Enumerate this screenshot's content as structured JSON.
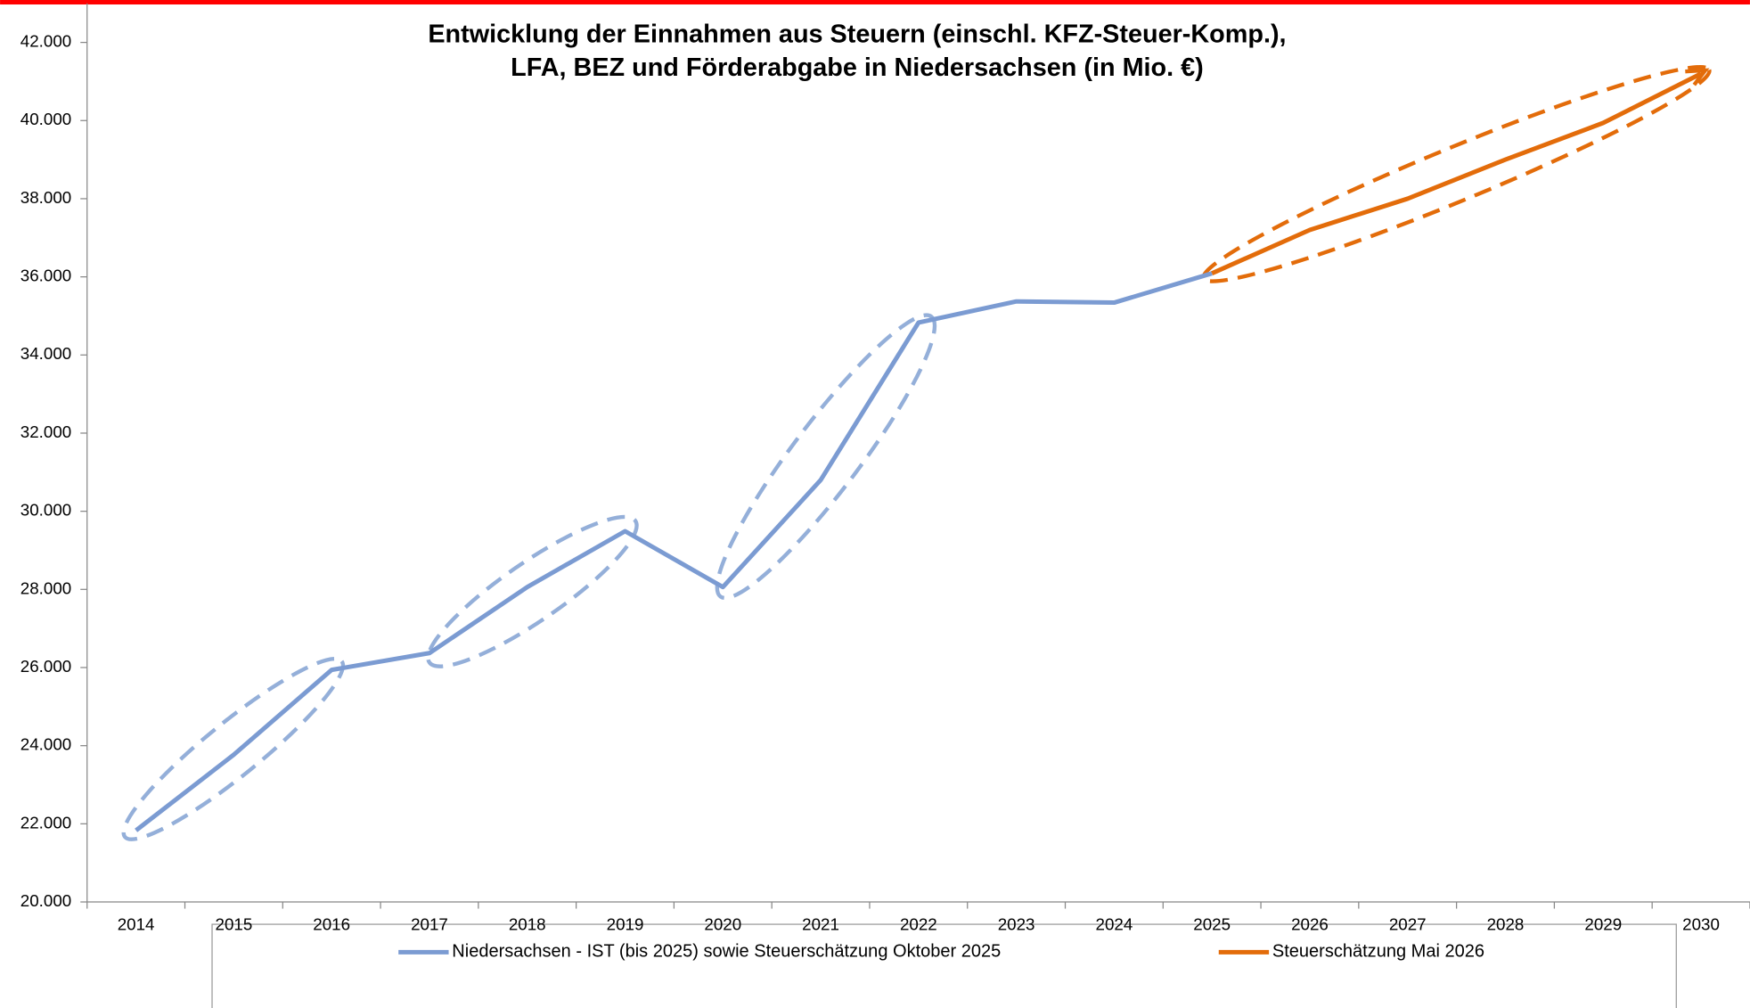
{
  "chart_data": {
    "type": "line",
    "title": [
      "Entwicklung der Einnahmen aus Steuern (einschl. KFZ-Steuer-Komp.),",
      "LFA, BEZ und Förderabgabe in Niedersachsen (in Mio. €)"
    ],
    "categories": [
      "2014",
      "2015",
      "2016",
      "2017",
      "2018",
      "2019",
      "2020",
      "2021",
      "2022",
      "2023",
      "2024",
      "2025",
      "2026",
      "2027",
      "2028",
      "2029",
      "2030"
    ],
    "series": [
      {
        "name": "Niedersachsen - IST (bis 2025) sowie Steuerschätzung Oktober 2025",
        "color": "#7b9bd2",
        "values": [
          21830,
          23770,
          25940,
          26370,
          28060,
          29490,
          28060,
          30800,
          34830,
          35370,
          35340,
          36090,
          null,
          null,
          null,
          null,
          null
        ]
      },
      {
        "name": "Steuerschätzung Mai 2026",
        "color": "#e36c0a",
        "values": [
          null,
          null,
          null,
          null,
          null,
          null,
          null,
          null,
          null,
          null,
          null,
          36090,
          37200,
          38000,
          39000,
          39940,
          41200
        ]
      }
    ],
    "ylim": [
      20000,
      43000
    ],
    "yticks": [
      {
        "value": 20000,
        "label": "20.000"
      },
      {
        "value": 22000,
        "label": "22.000"
      },
      {
        "value": 24000,
        "label": "24.000"
      },
      {
        "value": 26000,
        "label": "26.000"
      },
      {
        "value": 28000,
        "label": "28.000"
      },
      {
        "value": 30000,
        "label": "30.000"
      },
      {
        "value": 32000,
        "label": "32.000"
      },
      {
        "value": 34000,
        "label": "34.000"
      },
      {
        "value": 36000,
        "label": "36.000"
      },
      {
        "value": 38000,
        "label": "38.000"
      },
      {
        "value": 40000,
        "label": "40.000"
      },
      {
        "value": 42000,
        "label": "42.000"
      }
    ],
    "grid": false,
    "legend": "bottom"
  }
}
